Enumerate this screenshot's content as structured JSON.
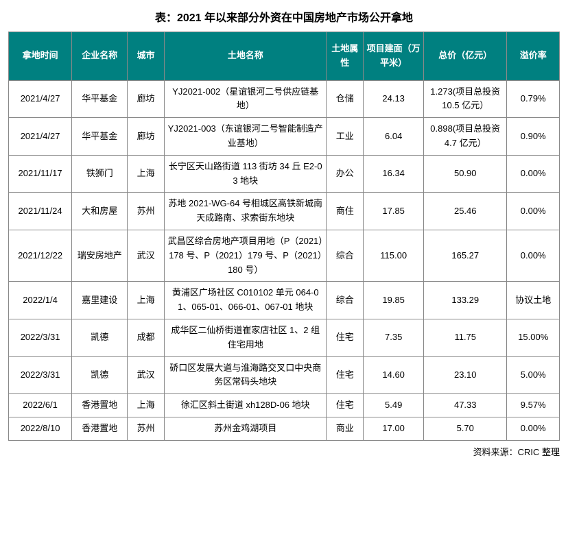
{
  "title": "表：2021 年以来部分外资在中国房地产市场公开拿地",
  "source": "资料来源：CRIC 整理",
  "header_bg": "#008080",
  "header_fg": "#ffffff",
  "columns": [
    "拿地时间",
    "企业名称",
    "城市",
    "土地名称",
    "土地属性",
    "项目建面（万平米）",
    "总价（亿元）",
    "溢价率"
  ],
  "rows": [
    {
      "date": "2021/4/27",
      "company": "华平基金",
      "city": "廊坊",
      "land": "YJ2021-002（星谊银河二号供应链基地）",
      "attr": "仓储",
      "area": "24.13",
      "price": "1.273(项目总投资 10.5 亿元）",
      "premium": "0.79%"
    },
    {
      "date": "2021/4/27",
      "company": "华平基金",
      "city": "廊坊",
      "land": "YJ2021-003（东谊银河二号智能制造产业基地）",
      "attr": "工业",
      "area": "6.04",
      "price": "0.898(项目总投资 4.7 亿元）",
      "premium": "0.90%"
    },
    {
      "date": "2021/11/17",
      "company": "铁狮门",
      "city": "上海",
      "land": "长宁区天山路街道 113 街坊 34 丘 E2-03 地块",
      "attr": "办公",
      "area": "16.34",
      "price": "50.90",
      "premium": "0.00%"
    },
    {
      "date": "2021/11/24",
      "company": "大和房屋",
      "city": "苏州",
      "land": "苏地 2021-WG-64 号相城区高铁新城南天成路南、求索街东地块",
      "attr": "商住",
      "area": "17.85",
      "price": "25.46",
      "premium": "0.00%"
    },
    {
      "date": "2021/12/22",
      "company": "瑞安房地产",
      "city": "武汉",
      "land": "武昌区综合房地产项目用地（P（2021）178 号、P（2021）179 号、P（2021）180 号）",
      "attr": "综合",
      "area": "115.00",
      "price": "165.27",
      "premium": "0.00%"
    },
    {
      "date": "2022/1/4",
      "company": "嘉里建设",
      "city": "上海",
      "land": "黄浦区广场社区 C010102 单元 064-01、065-01、066-01、067-01 地块",
      "attr": "综合",
      "area": "19.85",
      "price": "133.29",
      "premium": "协议土地"
    },
    {
      "date": "2022/3/31",
      "company": "凯德",
      "city": "成都",
      "land": "成华区二仙桥街道崔家店社区 1、2 组住宅用地",
      "attr": "住宅",
      "area": "7.35",
      "price": "11.75",
      "premium": "15.00%"
    },
    {
      "date": "2022/3/31",
      "company": "凯德",
      "city": "武汉",
      "land": "硚口区发展大道与淮海路交叉口中央商务区常码头地块",
      "attr": "住宅",
      "area": "14.60",
      "price": "23.10",
      "premium": "5.00%"
    },
    {
      "date": "2022/6/1",
      "company": "香港置地",
      "city": "上海",
      "land": "徐汇区斜土街道 xh128D-06 地块",
      "attr": "住宅",
      "area": "5.49",
      "price": "47.33",
      "premium": "9.57%"
    },
    {
      "date": "2022/8/10",
      "company": "香港置地",
      "city": "苏州",
      "land": "苏州金鸡湖项目",
      "attr": "商业",
      "area": "17.00",
      "price": "5.70",
      "premium": "0.00%"
    }
  ]
}
